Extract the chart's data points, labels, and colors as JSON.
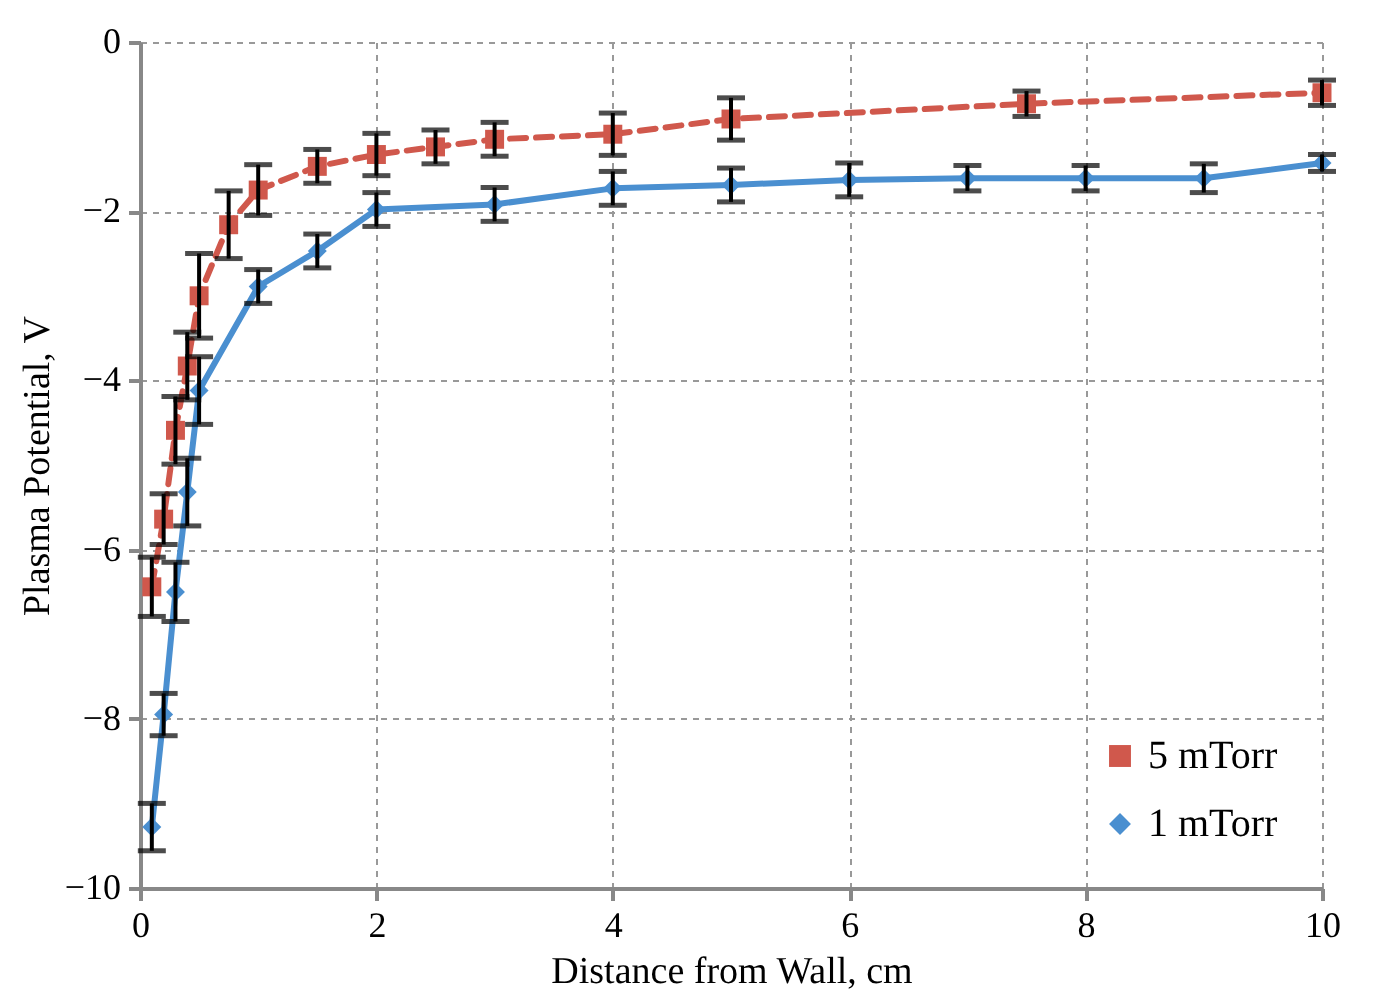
{
  "chart_data": {
    "type": "line",
    "xlabel": "Distance from Wall, cm",
    "ylabel": "Plasma Potential, V",
    "xlim": [
      0,
      10
    ],
    "xticks": [
      0,
      2,
      4,
      6,
      8,
      10
    ],
    "ylim": [
      -10,
      0
    ],
    "yticks": [
      -10,
      -8,
      -6,
      -4,
      -2,
      0
    ],
    "grid": true,
    "legend": "bottom right",
    "series": [
      {
        "name": "5 mTorr",
        "color": "#d0584c",
        "marker": "square",
        "line_style": "dashed",
        "x": [
          0.1,
          0.2,
          0.3,
          0.4,
          0.5,
          0.75,
          1,
          1.5,
          2,
          2.5,
          3,
          4,
          5,
          7.5,
          10
        ],
        "values": [
          -6.44,
          -5.64,
          -4.59,
          -3.83,
          -3.0,
          -2.16,
          -1.75,
          -1.47,
          -1.33,
          -1.24,
          -1.15,
          -1.09,
          -0.91,
          -0.73,
          -0.6
        ],
        "errors": [
          0.35,
          0.3,
          0.4,
          0.4,
          0.5,
          0.4,
          0.3,
          0.2,
          0.25,
          0.2,
          0.2,
          0.25,
          0.25,
          0.15,
          0.15
        ]
      },
      {
        "name": "1 mTorr",
        "color": "#4a8fd0",
        "marker": "diamond",
        "line_style": "solid",
        "x": [
          0.1,
          0.2,
          0.3,
          0.4,
          0.5,
          1,
          1.5,
          2,
          3,
          4,
          5,
          6,
          7,
          8,
          9,
          10
        ],
        "values": [
          -9.28,
          -7.95,
          -6.5,
          -5.32,
          -4.12,
          -2.89,
          -2.47,
          -1.98,
          -1.92,
          -1.73,
          -1.69,
          -1.63,
          -1.61,
          -1.61,
          -1.61,
          -1.43
        ],
        "errors": [
          0.28,
          0.25,
          0.35,
          0.4,
          0.4,
          0.2,
          0.2,
          0.2,
          0.2,
          0.2,
          0.2,
          0.2,
          0.15,
          0.15,
          0.17,
          0.1
        ]
      }
    ]
  }
}
